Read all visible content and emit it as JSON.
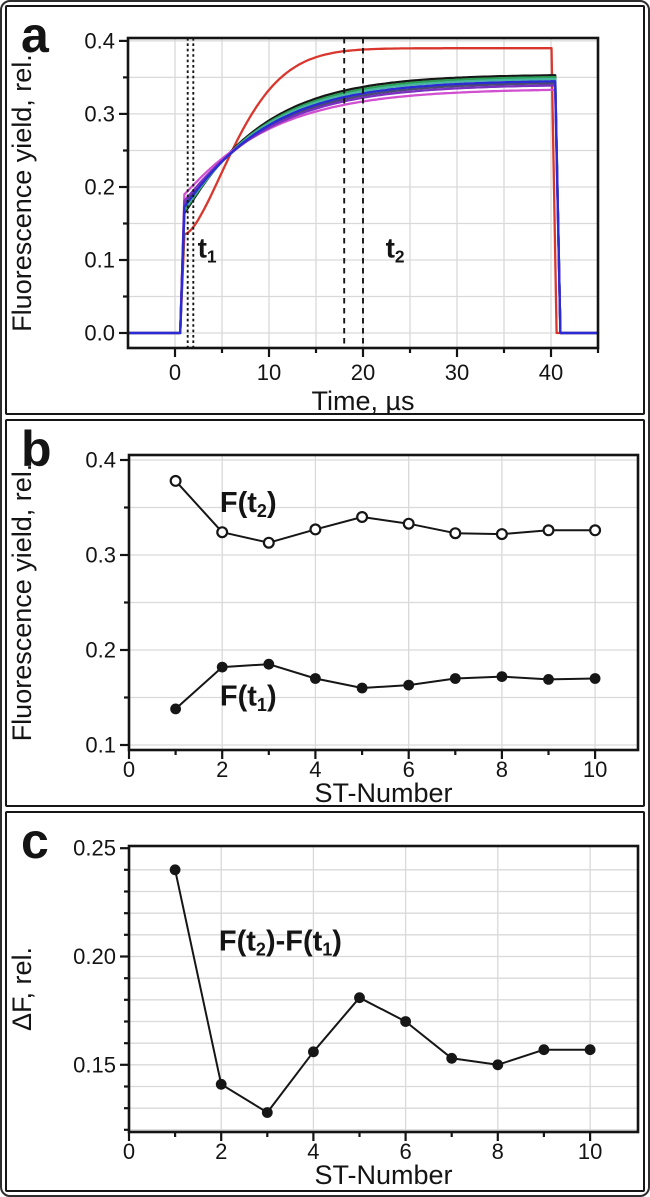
{
  "figure": {
    "background": "#ffffff",
    "border_color": "#141414",
    "grid_color": "#d9d9d9",
    "text_color": "#141414"
  },
  "chart_data": [
    {
      "panel": "a",
      "letter": "a",
      "type": "line",
      "title": "",
      "xlabel": "Time, µs",
      "ylabel": "Fluorescence yield, rel.",
      "xlim": [
        -5,
        45
      ],
      "ylim": [
        -0.0205,
        0.404
      ],
      "xticks_major": [
        0,
        10,
        20,
        30,
        40
      ],
      "xtick_labels": [
        "0",
        "10",
        "20",
        "30",
        "40"
      ],
      "xticks_minor": [
        5,
        15,
        25,
        35,
        45
      ],
      "yticks_major": [
        0.0,
        0.1,
        0.2,
        0.3,
        0.4
      ],
      "ytick_labels": [
        "0.0",
        "0.1",
        "0.2",
        "0.3",
        "0.4"
      ],
      "yticks_minor": [
        0.05,
        0.15,
        0.25,
        0.35
      ],
      "grid_x": [
        0,
        5,
        10,
        15,
        20,
        25,
        30,
        35,
        40,
        45
      ],
      "grid_y": [
        0.0,
        0.05,
        0.1,
        0.15,
        0.2,
        0.25,
        0.3,
        0.35,
        0.4
      ],
      "grid": true,
      "legend": "none",
      "vlines_dashed": [
        {
          "x": 1.35,
          "dash": "2.6 2.8"
        },
        {
          "x": 1.95,
          "dash": "2.6 2.8"
        },
        {
          "x": 18.0,
          "dash": "5.5 4.5"
        },
        {
          "x": 20.0,
          "dash": "5.5 4.5"
        }
      ],
      "annotations": [
        {
          "segments": [
            {
              "t": "t"
            },
            {
              "t": "1",
              "sub": true
            }
          ],
          "x": 2.4,
          "y": 0.117,
          "size": 28
        },
        {
          "segments": [
            {
              "t": "t"
            },
            {
              "t": "2",
              "sub": true
            }
          ],
          "x": 22.4,
          "y": 0.117,
          "size": 28
        }
      ],
      "light_on_us": 0.55,
      "rise_end_us": 1.0,
      "fall_us": 0.55,
      "traces": [
        {
          "name": "trace-red",
          "color": "#d9362e",
          "f_initial": 0.135,
          "f_plateau": 0.39,
          "tau_us": 7.0,
          "shape_p": 1.6,
          "off_us": 40.05
        },
        {
          "name": "trace-black",
          "color": "#161616",
          "f_initial": 0.164,
          "f_plateau": 0.354,
          "tau_us": 8.2,
          "shape_p": 1.05,
          "off_us": 40.45
        },
        {
          "name": "trace-green",
          "color": "#2c9e57",
          "f_initial": 0.167,
          "f_plateau": 0.3515,
          "tau_us": 8.4,
          "shape_p": 1.05,
          "off_us": 40.45
        },
        {
          "name": "trace-teal",
          "color": "#49b79e",
          "f_initial": 0.17,
          "f_plateau": 0.349,
          "tau_us": 8.55,
          "shape_p": 1.05,
          "off_us": 40.45
        },
        {
          "name": "trace-slate",
          "color": "#4a4a72",
          "f_initial": 0.176,
          "f_plateau": 0.3435,
          "tau_us": 8.9,
          "shape_p": 1.05,
          "off_us": 40.45
        },
        {
          "name": "trace-magenta",
          "color": "#d050d0",
          "f_initial": 0.19,
          "f_plateau": 0.3345,
          "tau_us": 9.3,
          "shape_p": 1.05,
          "off_us": 40.45
        },
        {
          "name": "trace-violet",
          "color": "#7a30c0",
          "f_initial": 0.181,
          "f_plateau": 0.3405,
          "tau_us": 9.1,
          "shape_p": 1.05,
          "off_us": 40.45
        },
        {
          "name": "trace-blue",
          "color": "#2b2bd5",
          "f_initial": 0.173,
          "f_plateau": 0.346,
          "tau_us": 8.7,
          "shape_p": 1.05,
          "off_us": 40.45
        }
      ]
    },
    {
      "panel": "b",
      "letter": "b",
      "type": "scatter",
      "title": "",
      "xlabel": "ST-Number",
      "ylabel": "Fluorescence yield, rel.",
      "xlim": [
        0,
        10.92
      ],
      "ylim": [
        0.0947,
        0.4053
      ],
      "xticks_major": [
        0,
        2,
        4,
        6,
        8,
        10
      ],
      "xtick_labels": [
        "0",
        "2",
        "4",
        "6",
        "8",
        "10"
      ],
      "xticks_minor": [
        1,
        3,
        5,
        7,
        9
      ],
      "yticks_major": [
        0.1,
        0.2,
        0.3,
        0.4
      ],
      "ytick_labels": [
        "0.1",
        "0.2",
        "0.3",
        "0.4"
      ],
      "yticks_minor": [
        0.15,
        0.25,
        0.35
      ],
      "grid_x": [
        2,
        4,
        6,
        8,
        10
      ],
      "grid_y": [
        0.1,
        0.15,
        0.2,
        0.25,
        0.3,
        0.35,
        0.4
      ],
      "grid": true,
      "legend": "inline-labels",
      "x": [
        1,
        2,
        3,
        4,
        5,
        6,
        7,
        8,
        9,
        10
      ],
      "series": [
        {
          "name": "F(t2)",
          "marker": "open",
          "color": "#161616",
          "values": [
            0.378,
            0.324,
            0.313,
            0.327,
            0.34,
            0.333,
            0.323,
            0.322,
            0.326,
            0.326
          ],
          "label": {
            "segments": [
              {
                "t": "F(t"
              },
              {
                "t": "2",
                "sub": true
              },
              {
                "t": ")"
              }
            ],
            "x": 1.95,
            "y": 0.356,
            "size": 29
          }
        },
        {
          "name": "F(t1)",
          "marker": "filled",
          "color": "#161616",
          "values": [
            0.138,
            0.182,
            0.185,
            0.17,
            0.16,
            0.163,
            0.17,
            0.172,
            0.169,
            0.17
          ],
          "label": {
            "segments": [
              {
                "t": "F(t"
              },
              {
                "t": "1",
                "sub": true
              },
              {
                "t": ")"
              }
            ],
            "x": 1.95,
            "y": 0.152,
            "size": 29
          }
        }
      ]
    },
    {
      "panel": "c",
      "letter": "c",
      "type": "scatter",
      "title": "",
      "xlabel": "ST-Number",
      "ylabel": "ΔF, rel.",
      "xlim": [
        0,
        11.04
      ],
      "ylim": [
        0.119,
        0.251
      ],
      "xticks_major": [
        0,
        2,
        4,
        6,
        8,
        10
      ],
      "xtick_labels": [
        "0",
        "2",
        "4",
        "6",
        "8",
        "10"
      ],
      "xticks_minor": [
        1,
        3,
        5,
        7,
        9
      ],
      "yticks_major": [
        0.15,
        0.2,
        0.25
      ],
      "ytick_labels": [
        "0.15",
        "0.20",
        "0.25"
      ],
      "yticks_minor": [
        0.12,
        0.13,
        0.14,
        0.16,
        0.17,
        0.18,
        0.19,
        0.21,
        0.22,
        0.23,
        0.24
      ],
      "grid_x": [
        2,
        4,
        6,
        8,
        10
      ],
      "grid_y": [
        0.12,
        0.13,
        0.14,
        0.15,
        0.16,
        0.17,
        0.18,
        0.19,
        0.2,
        0.21,
        0.22,
        0.23,
        0.24
      ],
      "grid": true,
      "legend": "inline-labels",
      "x": [
        1,
        2,
        3,
        4,
        5,
        6,
        7,
        8,
        9,
        10
      ],
      "series": [
        {
          "name": "F(t2)-F(t1)",
          "marker": "filled",
          "color": "#161616",
          "values": [
            0.24,
            0.141,
            0.128,
            0.156,
            0.181,
            0.17,
            0.153,
            0.15,
            0.157,
            0.157
          ],
          "label": {
            "segments": [
              {
                "t": "F(t"
              },
              {
                "t": "2",
                "sub": true
              },
              {
                "t": ")-F(t"
              },
              {
                "t": "1",
                "sub": true
              },
              {
                "t": ")"
              }
            ],
            "x": 1.95,
            "y": 0.2075,
            "size": 29
          }
        }
      ]
    }
  ]
}
